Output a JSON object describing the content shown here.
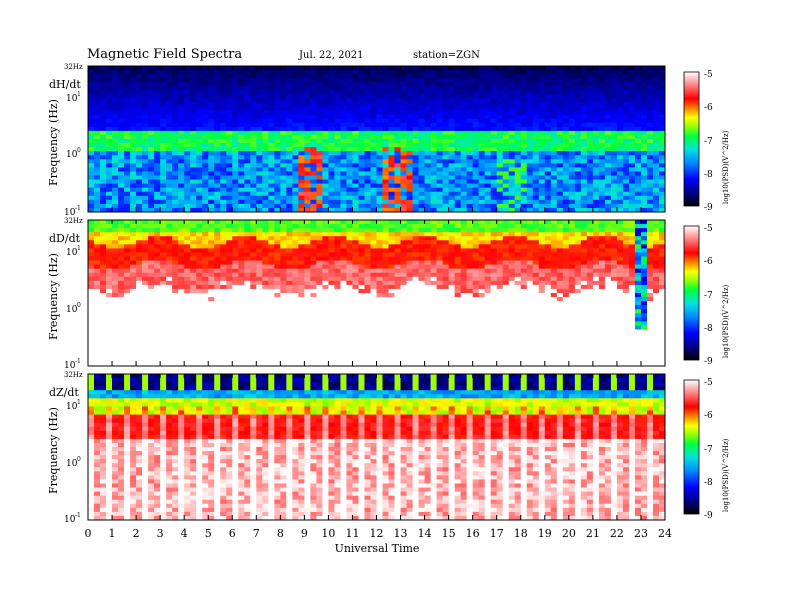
{
  "header": {
    "title": "Magnetic  Field  Spectra",
    "date": "Jul.  22, 2021",
    "station": "station=ZGN"
  },
  "chart_data": [
    {
      "type": "heatmap",
      "panel_label": "dH/dt",
      "ylabel": "Frequency  (Hz)",
      "top_label": "32Hz",
      "y_scale": "log",
      "ylim": [
        0.1,
        32
      ],
      "y_ticks": [
        "10",
        "10",
        "10"
      ],
      "y_tick_exponents": [
        "1",
        "0",
        "-1"
      ],
      "x_range": [
        0,
        24
      ],
      "colorbar": {
        "range": [
          -9,
          -5
        ],
        "ticks": [
          "-5",
          "-6",
          "-7",
          "-8",
          "-9"
        ],
        "label": "log10(PSD)(V^2/Hz)"
      },
      "pattern": "dark navy above ~3 Hz, cyan/green band 1-2 Hz, blue/green noise below 1 Hz, red/orange bursts near 9h and 12-13h"
    },
    {
      "type": "heatmap",
      "panel_label": "dD/dt",
      "ylabel": "Frequency  (Hz)",
      "top_label": "32Hz",
      "y_scale": "log",
      "ylim": [
        0.1,
        32
      ],
      "y_ticks": [
        "10",
        "10",
        "10"
      ],
      "y_tick_exponents": [
        "1",
        "0",
        "-1"
      ],
      "x_range": [
        0,
        24
      ],
      "colorbar": {
        "range": [
          -9,
          -5
        ],
        "ticks": [
          "-5",
          "-6",
          "-7",
          "-8",
          "-9"
        ],
        "label": "log10(PSD)(V^2/Hz)"
      },
      "pattern": "yellow/green band near 15-30 Hz over red, fading to white below; dark spike near 22.8h"
    },
    {
      "type": "heatmap",
      "panel_label": "dZ/dt",
      "ylabel": "Frequency  (Hz)",
      "top_label": "32Hz",
      "y_scale": "log",
      "ylim": [
        0.1,
        32
      ],
      "y_ticks": [
        "10",
        "10",
        "10"
      ],
      "y_tick_exponents": [
        "1",
        "0",
        "-1"
      ],
      "x_range": [
        0,
        24
      ],
      "colorbar": {
        "range": [
          -9,
          -5
        ],
        "ticks": [
          "-5",
          "-6",
          "-7",
          "-8",
          "-9"
        ],
        "label": "log10(PSD)(V^2/Hz)"
      },
      "pattern": "dark/blue top with periodic vertical stripes, green/yellow band ~10-20 Hz, red fading to white below"
    }
  ],
  "x_axis": {
    "label": "Universal Time",
    "ticks": [
      "0",
      "1",
      "2",
      "3",
      "4",
      "5",
      "6",
      "7",
      "8",
      "9",
      "10",
      "11",
      "12",
      "13",
      "14",
      "15",
      "16",
      "17",
      "18",
      "19",
      "20",
      "21",
      "22",
      "23",
      "24"
    ]
  },
  "colorbar_label": "log10(PSD)(V^2/Hz)"
}
